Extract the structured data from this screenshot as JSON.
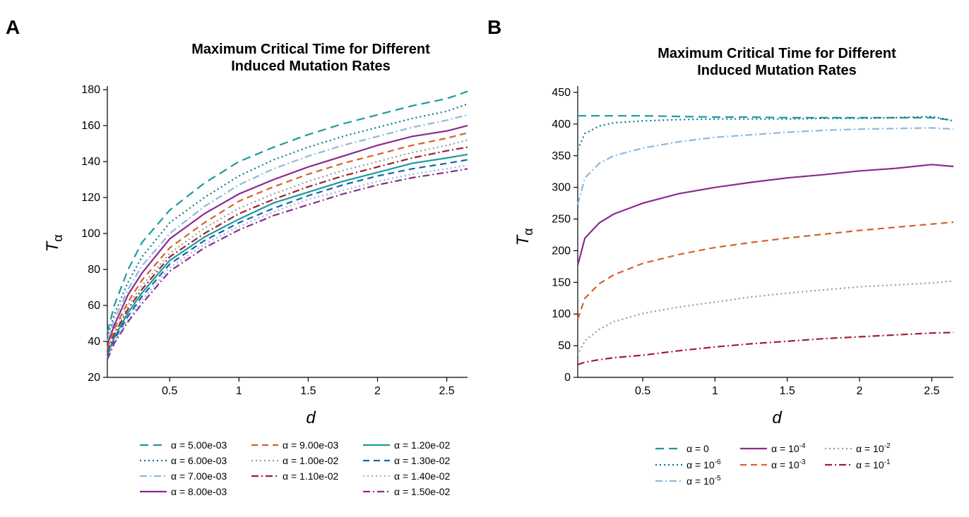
{
  "chart_data": [
    {
      "panel_label": "A",
      "type": "line",
      "title_lines": [
        "Maximum Critical Time for Different",
        "Induced Mutation Rates"
      ],
      "xlabel": "d",
      "ylabel_main": "T",
      "ylabel_sub": "α",
      "xlim": [
        0.05,
        2.65
      ],
      "ylim": [
        20,
        182
      ],
      "xticks": [
        0.5,
        1,
        1.5,
        2,
        2.5
      ],
      "xtick_labels": [
        "0.5",
        "1",
        "1.5",
        "2",
        "2.5"
      ],
      "yticks": [
        20,
        40,
        60,
        80,
        100,
        120,
        140,
        160,
        180
      ],
      "ytick_labels": [
        "20",
        "40",
        "60",
        "80",
        "100",
        "120",
        "140",
        "160",
        "180"
      ],
      "grid": false,
      "legend_position": "bottom",
      "legend_columns": 3,
      "x": [
        0.05,
        0.1,
        0.2,
        0.3,
        0.5,
        0.75,
        1.0,
        1.25,
        1.5,
        1.75,
        2.0,
        2.25,
        2.5,
        2.65
      ],
      "series": [
        {
          "name": "α = 5.00e-03",
          "color": "#1a9b9e",
          "dash": "long-dash",
          "values": [
            45,
            60,
            80,
            95,
            113,
            128,
            140,
            148,
            155,
            161,
            166,
            171,
            175,
            179
          ]
        },
        {
          "name": "α = 6.00e-03",
          "color": "#0e7596",
          "dash": "dot",
          "values": [
            42,
            55,
            73,
            87,
            106,
            120,
            132,
            141,
            148,
            154,
            159,
            164,
            168,
            172
          ]
        },
        {
          "name": "α = 7.00e-03",
          "color": "#8fb8dc",
          "dash": "dash-dot",
          "values": [
            40,
            52,
            69,
            82,
            100,
            115,
            127,
            136,
            143,
            149,
            154,
            159,
            163,
            166
          ]
        },
        {
          "name": "α = 8.00e-03",
          "color": "#8b2a8f",
          "dash": "solid",
          "values": [
            38,
            49,
            66,
            78,
            97,
            111,
            122,
            130,
            137,
            143,
            149,
            154,
            157,
            160
          ]
        },
        {
          "name": "α = 9.00e-03",
          "color": "#d4622a",
          "dash": "dash",
          "values": [
            36,
            47,
            62,
            74,
            92,
            106,
            118,
            126,
            133,
            139,
            144,
            149,
            153,
            156
          ]
        },
        {
          "name": "α = 1.00e-02",
          "color": "#9a9a9a",
          "dash": "dot",
          "values": [
            35,
            45,
            60,
            71,
            89,
            103,
            114,
            122,
            129,
            135,
            140,
            145,
            149,
            152
          ]
        },
        {
          "name": "α = 1.10e-02",
          "color": "#9e1f2e",
          "dash": "dash-dot",
          "values": [
            34,
            44,
            58,
            69,
            87,
            100,
            111,
            119,
            126,
            132,
            137,
            142,
            146,
            148
          ]
        },
        {
          "name": "α = 1.20e-02",
          "color": "#1a9b9e",
          "dash": "solid",
          "values": [
            33,
            42,
            56,
            67,
            85,
            98,
            108,
            117,
            123,
            129,
            134,
            139,
            142,
            144
          ]
        },
        {
          "name": "α = 1.30e-02",
          "color": "#1565a8",
          "dash": "dash",
          "values": [
            32,
            41,
            54,
            65,
            83,
            96,
            106,
            114,
            121,
            127,
            132,
            136,
            139,
            141
          ]
        },
        {
          "name": "α = 1.40e-02",
          "color": "#8fb8dc",
          "dash": "dot",
          "values": [
            31,
            40,
            52,
            63,
            81,
            94,
            104,
            112,
            119,
            124,
            129,
            133,
            136,
            138
          ]
        },
        {
          "name": "α = 1.50e-02",
          "color": "#8b2a8f",
          "dash": "dash-dot",
          "values": [
            30,
            39,
            51,
            61,
            79,
            92,
            102,
            110,
            116,
            122,
            127,
            131,
            134,
            136
          ]
        }
      ]
    },
    {
      "panel_label": "B",
      "type": "line",
      "title_lines": [
        "Maximum Critical Time for Different",
        "Induced Mutation Rates"
      ],
      "xlabel": "d",
      "ylabel_main": "T",
      "ylabel_sub": "α",
      "xlim": [
        0.05,
        2.65
      ],
      "ylim": [
        0,
        460
      ],
      "xticks": [
        0.5,
        1,
        1.5,
        2,
        2.5
      ],
      "xtick_labels": [
        "0.5",
        "1",
        "1.5",
        "2",
        "2.5"
      ],
      "yticks": [
        0,
        50,
        100,
        150,
        200,
        250,
        300,
        350,
        400,
        450
      ],
      "ytick_labels": [
        "0",
        "50",
        "100",
        "150",
        "200",
        "250",
        "300",
        "350",
        "400",
        "450"
      ],
      "grid": false,
      "legend_position": "bottom",
      "legend_columns": 3,
      "x": [
        0.05,
        0.1,
        0.2,
        0.3,
        0.5,
        0.75,
        1.0,
        1.25,
        1.5,
        1.75,
        2.0,
        2.25,
        2.5,
        2.65
      ],
      "series": [
        {
          "name": "α = 0",
          "name_base": "α = 0",
          "name_sup": "",
          "color": "#1a9b9e",
          "dash": "long-dash",
          "values": [
            413,
            413,
            413,
            413,
            413,
            412,
            411,
            411,
            410,
            410,
            410,
            410,
            410,
            406
          ]
        },
        {
          "name": "α = 10-6",
          "name_base": "α = 10",
          "name_sup": "-6",
          "color": "#0e7596",
          "dash": "dot",
          "values": [
            360,
            385,
            397,
            402,
            405,
            407,
            408,
            408,
            408,
            409,
            409,
            410,
            412,
            405
          ]
        },
        {
          "name": "α = 10-5",
          "name_base": "α = 10",
          "name_sup": "-5",
          "color": "#8fb8dc",
          "dash": "dash-dot",
          "values": [
            273,
            315,
            338,
            350,
            362,
            372,
            379,
            383,
            387,
            390,
            392,
            393,
            394,
            392
          ]
        },
        {
          "name": "α = 10-4",
          "name_base": "α = 10",
          "name_sup": "-4",
          "color": "#8b2a8f",
          "dash": "solid",
          "values": [
            177,
            220,
            244,
            258,
            275,
            290,
            300,
            308,
            315,
            320,
            326,
            330,
            336,
            333
          ]
        },
        {
          "name": "α = 10-3",
          "name_base": "α = 10",
          "name_sup": "-3",
          "color": "#d4622a",
          "dash": "dash",
          "values": [
            92,
            125,
            148,
            162,
            180,
            194,
            205,
            213,
            220,
            226,
            232,
            237,
            242,
            245
          ]
        },
        {
          "name": "α = 10-2",
          "name_base": "α = 10",
          "name_sup": "-2",
          "color": "#9a9a9a",
          "dash": "dot",
          "values": [
            35,
            58,
            76,
            88,
            101,
            111,
            119,
            127,
            133,
            138,
            143,
            146,
            149,
            152
          ]
        },
        {
          "name": "α = 10-1",
          "name_base": "α = 10",
          "name_sup": "-1",
          "color": "#9e1f2e",
          "dash": "dash-dot",
          "values": [
            20,
            24,
            28,
            31,
            35,
            42,
            48,
            53,
            57,
            61,
            64,
            67,
            70,
            71
          ]
        }
      ]
    }
  ]
}
